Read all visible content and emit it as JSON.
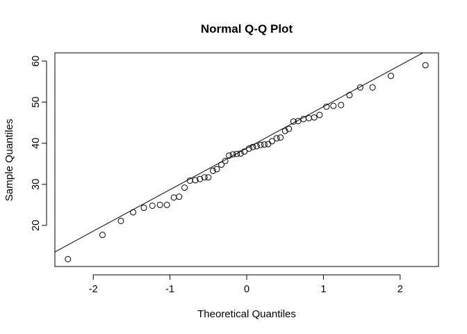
{
  "chart_data": {
    "type": "scatter",
    "title": "Normal Q-Q Plot",
    "xlabel": "Theoretical Quantiles",
    "ylabel": "Sample Quantiles",
    "xlim": [
      -2.5,
      2.5
    ],
    "ylim": [
      10,
      62
    ],
    "x_ticks": [
      -2,
      -1,
      0,
      1,
      2
    ],
    "y_ticks": [
      20,
      30,
      40,
      50,
      60
    ],
    "x_tick_labels": [
      "-2",
      "-1",
      "0",
      "1",
      "2"
    ],
    "y_tick_labels": [
      "20",
      "30",
      "40",
      "50",
      "60"
    ],
    "reference_line": {
      "intercept": 38.8,
      "slope": 10.1
    },
    "grid": false,
    "points": [
      {
        "x": -2.33,
        "y": 11.8
      },
      {
        "x": -1.88,
        "y": 17.7
      },
      {
        "x": -1.64,
        "y": 21.1
      },
      {
        "x": -1.48,
        "y": 23.2
      },
      {
        "x": -1.34,
        "y": 24.3
      },
      {
        "x": -1.23,
        "y": 24.8
      },
      {
        "x": -1.13,
        "y": 25.0
      },
      {
        "x": -1.04,
        "y": 25.0
      },
      {
        "x": -0.95,
        "y": 26.8
      },
      {
        "x": -0.88,
        "y": 27.0
      },
      {
        "x": -0.81,
        "y": 29.2
      },
      {
        "x": -0.74,
        "y": 30.9
      },
      {
        "x": -0.67,
        "y": 31.0
      },
      {
        "x": -0.61,
        "y": 31.3
      },
      {
        "x": -0.55,
        "y": 31.7
      },
      {
        "x": -0.5,
        "y": 31.7
      },
      {
        "x": -0.44,
        "y": 33.3
      },
      {
        "x": -0.39,
        "y": 33.7
      },
      {
        "x": -0.33,
        "y": 34.8
      },
      {
        "x": -0.28,
        "y": 35.7
      },
      {
        "x": -0.23,
        "y": 37.0
      },
      {
        "x": -0.18,
        "y": 37.3
      },
      {
        "x": -0.13,
        "y": 37.4
      },
      {
        "x": -0.08,
        "y": 37.5
      },
      {
        "x": -0.03,
        "y": 38.0
      },
      {
        "x": 0.03,
        "y": 38.7
      },
      {
        "x": 0.08,
        "y": 39.1
      },
      {
        "x": 0.13,
        "y": 39.3
      },
      {
        "x": 0.18,
        "y": 39.6
      },
      {
        "x": 0.23,
        "y": 39.7
      },
      {
        "x": 0.28,
        "y": 39.8
      },
      {
        "x": 0.33,
        "y": 40.5
      },
      {
        "x": 0.39,
        "y": 41.2
      },
      {
        "x": 0.44,
        "y": 41.4
      },
      {
        "x": 0.5,
        "y": 43.0
      },
      {
        "x": 0.55,
        "y": 43.5
      },
      {
        "x": 0.61,
        "y": 45.3
      },
      {
        "x": 0.67,
        "y": 45.4
      },
      {
        "x": 0.74,
        "y": 45.9
      },
      {
        "x": 0.81,
        "y": 46.1
      },
      {
        "x": 0.88,
        "y": 46.3
      },
      {
        "x": 0.95,
        "y": 46.9
      },
      {
        "x": 1.04,
        "y": 48.9
      },
      {
        "x": 1.13,
        "y": 49.1
      },
      {
        "x": 1.23,
        "y": 49.3
      },
      {
        "x": 1.34,
        "y": 51.7
      },
      {
        "x": 1.48,
        "y": 53.6
      },
      {
        "x": 1.64,
        "y": 53.6
      },
      {
        "x": 1.88,
        "y": 56.4
      },
      {
        "x": 2.33,
        "y": 59.0
      }
    ]
  }
}
